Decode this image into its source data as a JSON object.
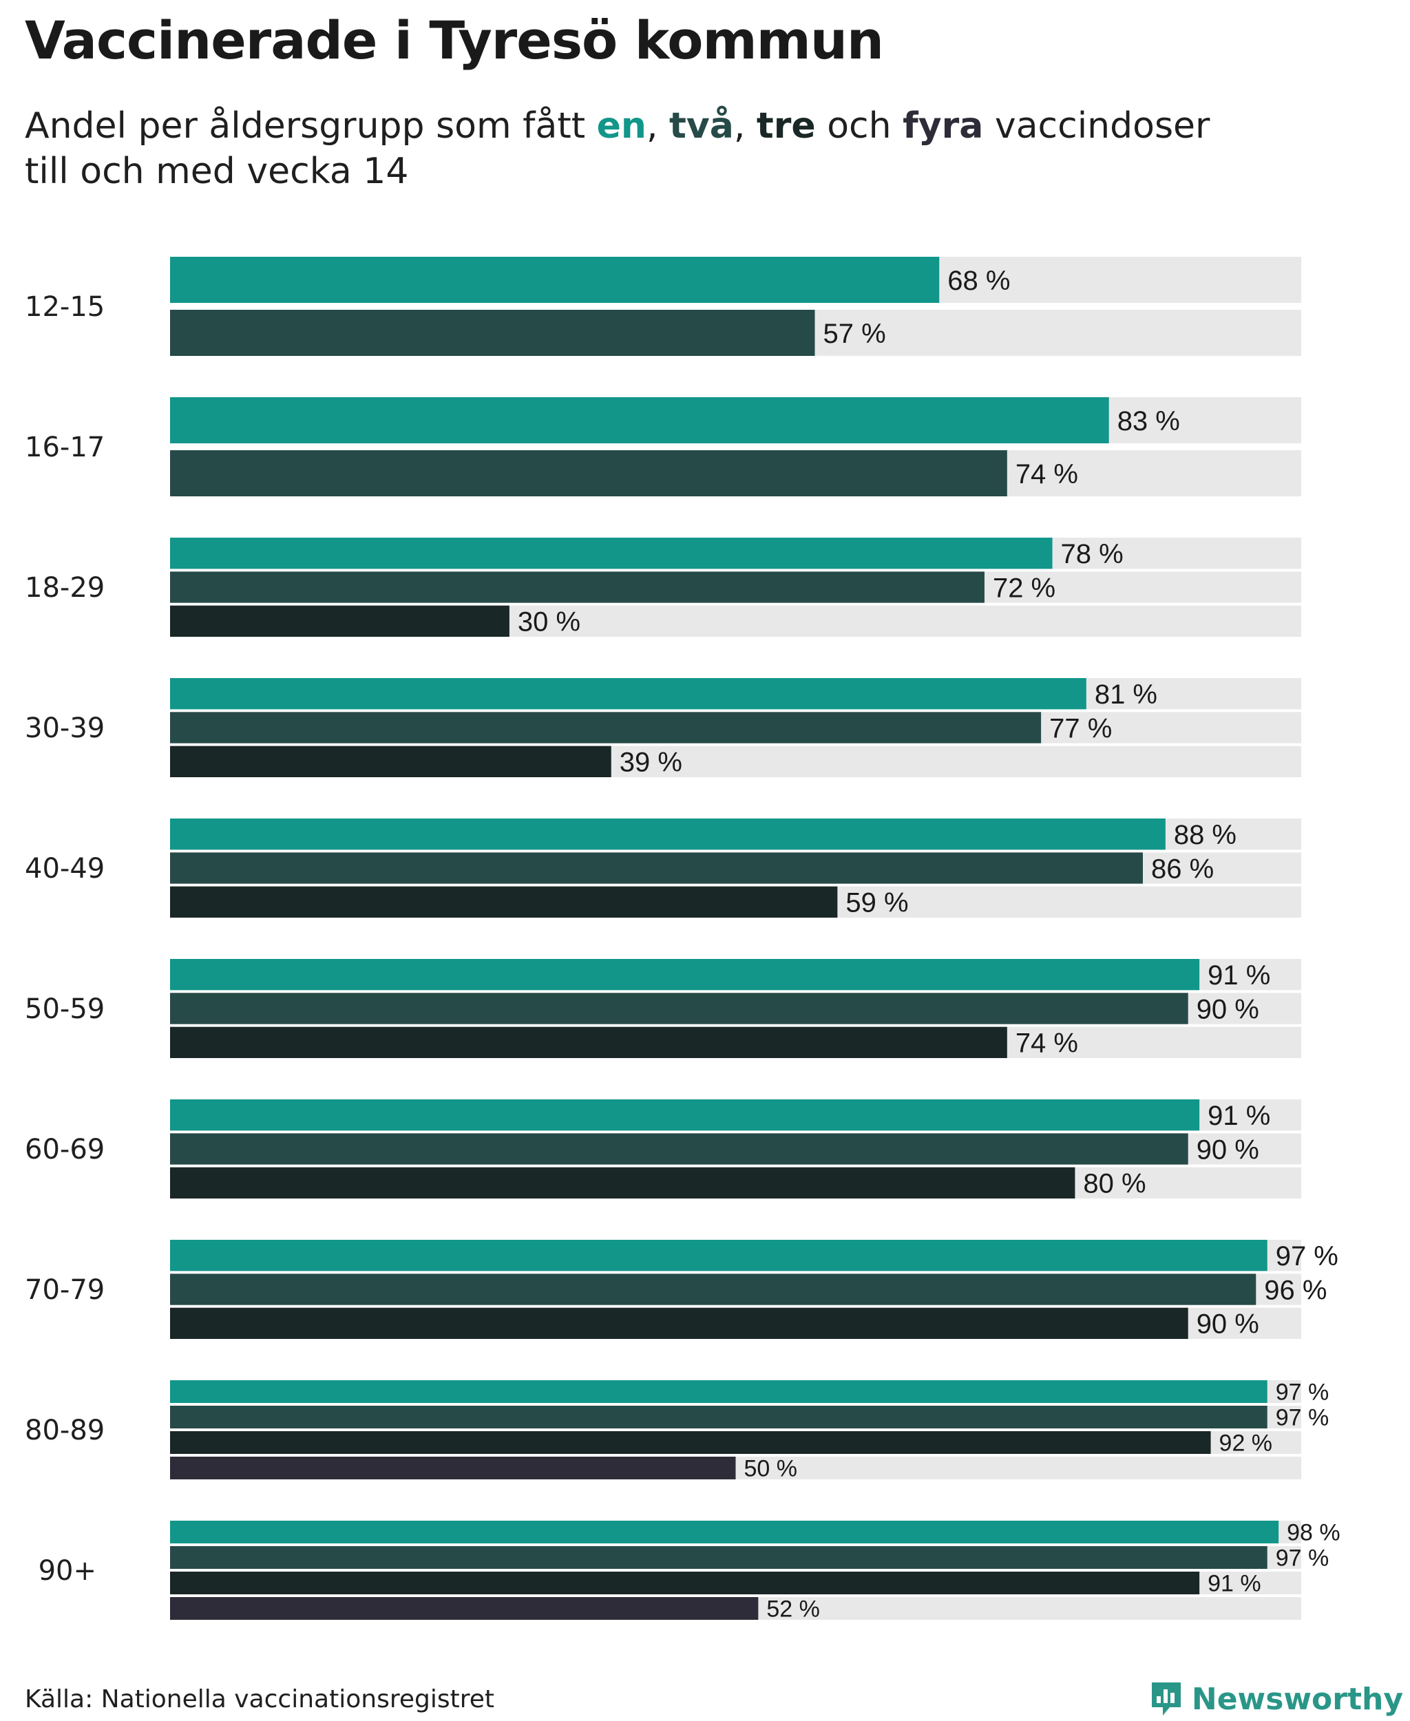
{
  "title": "Vaccinerade i Tyresö kommun",
  "subtitle": {
    "prefix": "Andel per åldersgrupp som fått ",
    "w1": "en",
    "sep1": ", ",
    "w2": "två",
    "sep2": ", ",
    "w3": "tre",
    "sep3": " och ",
    "w4": "fyra",
    "suffix": " vaccindoser",
    "line2": "till och med vecka 14"
  },
  "colors": {
    "dose1": "#12968a",
    "dose2": "#264a48",
    "dose3": "#192726",
    "dose4": "#2e2c38",
    "track": "#e8e8e8",
    "brand": "#2a9688"
  },
  "source": "Källa: Nationella vaccinationsregistret",
  "brand_name": "Newsworthy",
  "logo_icon": "bar-chart-badge-icon",
  "chart_data": {
    "type": "bar",
    "orientation": "horizontal",
    "xlim": [
      0,
      100
    ],
    "value_suffix": " %",
    "series_names": [
      "en",
      "två",
      "tre",
      "fyra"
    ],
    "categories": [
      "12-15",
      "16-17",
      "18-29",
      "30-39",
      "40-49",
      "50-59",
      "60-69",
      "70-79",
      "80-89",
      "90+"
    ],
    "groups": [
      {
        "label": "12-15",
        "values": [
          68,
          57
        ]
      },
      {
        "label": "16-17",
        "values": [
          83,
          74
        ]
      },
      {
        "label": "18-29",
        "values": [
          78,
          72,
          30
        ]
      },
      {
        "label": "30-39",
        "values": [
          81,
          77,
          39
        ]
      },
      {
        "label": "40-49",
        "values": [
          88,
          86,
          59
        ]
      },
      {
        "label": "50-59",
        "values": [
          91,
          90,
          74
        ]
      },
      {
        "label": "60-69",
        "values": [
          91,
          90,
          80
        ]
      },
      {
        "label": "70-79",
        "values": [
          97,
          96,
          90
        ]
      },
      {
        "label": "80-89",
        "values": [
          97,
          97,
          92,
          50
        ]
      },
      {
        "label": "90+",
        "values": [
          98,
          97,
          91,
          52
        ]
      }
    ]
  }
}
